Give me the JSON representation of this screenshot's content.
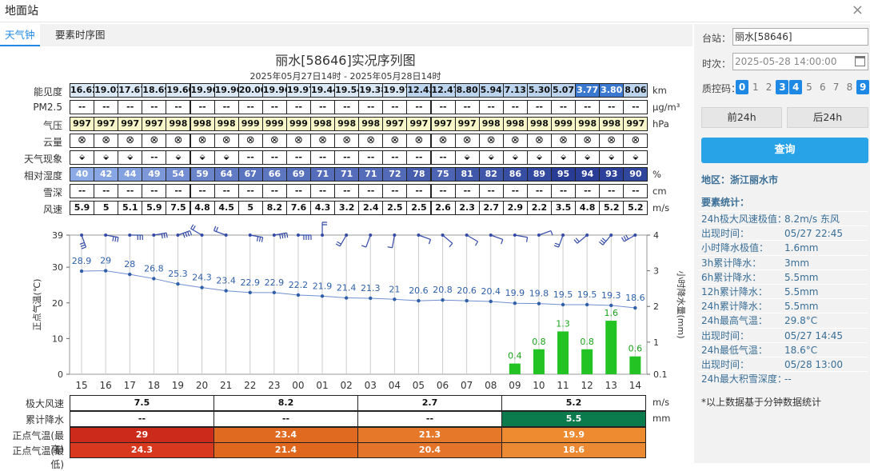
{
  "window": {
    "title": "地面站",
    "close": "×"
  },
  "tabs": [
    {
      "label": "天气钟",
      "active": true
    },
    {
      "label": "要素时序图",
      "active": false
    }
  ],
  "chart_title": "丽水[58646]实况序列图",
  "chart_subtitle": "2025年05月27日14时 - 2025年05月28日14时",
  "rows": [
    {
      "label": "能见度",
      "unit": "km",
      "values": [
        "16.62",
        "19.02",
        "17.67",
        "18.69",
        "19.60",
        "19.96",
        "19.90",
        "20.00",
        "19.96",
        "19.97",
        "19.44",
        "19.54",
        "19.38",
        "19.97",
        "12.43",
        "12.47",
        "8.80",
        "5.94",
        "7.13",
        "5.30",
        "5.07",
        "3.77",
        "3.80",
        "8.06"
      ]
    },
    {
      "label": "PM2.5",
      "unit": "μg/m³",
      "values": [
        "--",
        "--",
        "--",
        "--",
        "--",
        "--",
        "--",
        "--",
        "--",
        "--",
        "--",
        "--",
        "--",
        "--",
        "--",
        "--",
        "--",
        "--",
        "--",
        "--",
        "--",
        "--",
        "--",
        "--"
      ]
    },
    {
      "label": "气压",
      "unit": "hPa",
      "values": [
        "997",
        "997",
        "997",
        "997",
        "998",
        "998",
        "998",
        "999",
        "999",
        "999",
        "998",
        "998",
        "998",
        "997",
        "997",
        "997",
        "997",
        "998",
        "998",
        "998",
        "999",
        "998",
        "998",
        "997"
      ]
    },
    {
      "label": "云量",
      "unit": "",
      "values": [
        "⊗",
        "⊗",
        "⊗",
        "⊗",
        "⊗",
        "⊗",
        "⊗",
        "⊗",
        "⊗",
        "⊗",
        "⊗",
        "⊗",
        "⊗",
        "⊗",
        "⊗",
        "⊗",
        "⊗",
        "⊗",
        "⊗",
        "⊗",
        "⊗",
        "⊗",
        "⊗",
        "⊗"
      ]
    },
    {
      "label": "天气现象",
      "unit": "",
      "values": [
        "haze",
        "haze",
        "haze",
        "--",
        "haze",
        "haze",
        "haze",
        "--",
        "--",
        "--",
        "--",
        "--",
        "--",
        "--",
        "--",
        "--",
        "haze",
        "haze",
        "haze",
        "haze",
        "haze",
        "haze",
        "haze",
        "haze"
      ]
    },
    {
      "label": "相对湿度",
      "unit": "%",
      "values": [
        "40",
        "42",
        "44",
        "49",
        "54",
        "59",
        "64",
        "67",
        "66",
        "69",
        "71",
        "71",
        "71",
        "72",
        "78",
        "75",
        "81",
        "82",
        "86",
        "89",
        "95",
        "94",
        "93",
        "90"
      ]
    },
    {
      "label": "雪深",
      "unit": "cm",
      "values": [
        "--",
        "--",
        "--",
        "--",
        "--",
        "--",
        "--",
        "--",
        "--",
        "--",
        "--",
        "--",
        "--",
        "--",
        "--",
        "--",
        "--",
        "--",
        "--",
        "--",
        "--",
        "--",
        "--",
        "--"
      ]
    },
    {
      "label": "风速",
      "unit": "m/s",
      "values": [
        "5.9",
        "5",
        "5.1",
        "5.9",
        "7.5",
        "4.8",
        "4.5",
        "5",
        "8.2",
        "7.6",
        "4.3",
        "3.2",
        "2.4",
        "2.5",
        "2.5",
        "2.6",
        "2.3",
        "2.7",
        "2.9",
        "2.2",
        "3.5",
        "4.8",
        "5.2",
        "5.2"
      ]
    }
  ],
  "chart_data": {
    "type": "line",
    "categories": [
      "15",
      "16",
      "17",
      "18",
      "19",
      "20",
      "21",
      "22",
      "23",
      "00",
      "01",
      "02",
      "03",
      "04",
      "05",
      "06",
      "07",
      "08",
      "09",
      "10",
      "11",
      "12",
      "13",
      "14"
    ],
    "ylabel": "正点气温(℃)",
    "y2label": "小时降水量(mm)",
    "ylim": [
      0,
      39
    ],
    "yticks": [
      0,
      10,
      20,
      30,
      39
    ],
    "y2lim": [
      0.1,
      4
    ],
    "y2ticks": [
      "0.1",
      "1",
      "2",
      "3",
      "4"
    ],
    "series": [
      {
        "name": "正点气温",
        "type": "line",
        "values": [
          28.9,
          29,
          28,
          26.8,
          25.3,
          24.3,
          23.4,
          22.9,
          22.9,
          22.2,
          21.9,
          21.4,
          21.3,
          21,
          20.6,
          20.8,
          20.6,
          20.4,
          19.9,
          19.8,
          19.5,
          19.5,
          19.3,
          18.6
        ]
      },
      {
        "name": "小时降水量",
        "type": "bar",
        "values": [
          null,
          null,
          null,
          null,
          null,
          null,
          null,
          null,
          null,
          null,
          null,
          null,
          null,
          null,
          null,
          null,
          null,
          null,
          0.4,
          0.8,
          1.3,
          0.8,
          1.6,
          0.6
        ]
      }
    ],
    "line_color": "#2e5fa8",
    "bar_color": "#22c322",
    "wind_barbs": [
      {
        "ms": 5.9,
        "dir": 160
      },
      {
        "ms": 5,
        "dir": 100
      },
      {
        "ms": 5.1,
        "dir": 90
      },
      {
        "ms": 5.9,
        "dir": 80
      },
      {
        "ms": 7.5,
        "dir": 70
      },
      {
        "ms": 4.8,
        "dir": 300
      },
      {
        "ms": 4.5,
        "dir": 290
      },
      {
        "ms": 5,
        "dir": 100
      },
      {
        "ms": 8.2,
        "dir": 80
      },
      {
        "ms": 7.6,
        "dir": 90
      },
      {
        "ms": 4.3,
        "dir": 0
      },
      {
        "ms": 3.2,
        "dir": 210
      },
      {
        "ms": 2.4,
        "dir": 200
      },
      {
        "ms": 2.5,
        "dir": 190
      },
      {
        "ms": 2.5,
        "dir": 110
      },
      {
        "ms": 2.6,
        "dir": 130
      },
      {
        "ms": 2.3,
        "dir": 120
      },
      {
        "ms": 2.7,
        "dir": 110
      },
      {
        "ms": 2.9,
        "dir": 100
      },
      {
        "ms": 2.2,
        "dir": 70
      },
      {
        "ms": 3.5,
        "dir": 200
      },
      {
        "ms": 4.8,
        "dir": 230
      },
      {
        "ms": 5.2,
        "dir": 220
      },
      {
        "ms": 5.2,
        "dir": 240
      }
    ]
  },
  "bottom": {
    "labels": [
      "极大风速",
      "累计降水",
      "正点气温(最高)",
      "正点气温(最低)"
    ],
    "units": [
      "m/s",
      "mm"
    ],
    "max_wind": [
      "7.5",
      "8.2",
      "2.7",
      "5.2"
    ],
    "rain": [
      "--",
      "--",
      "--",
      "5.5"
    ],
    "tmax": [
      "29",
      "23.4",
      "21.3",
      "19.9"
    ],
    "tmin": [
      "24.3",
      "21.4",
      "20.4",
      "18.6"
    ]
  },
  "panel": {
    "station_label": "台站：",
    "station_value": "丽水[58646]",
    "time_label": "时次：",
    "time_value": "2025-05-28 14:00:00",
    "qc_label": "质控码：",
    "qc": [
      {
        "v": "0",
        "on": true
      },
      {
        "v": "1",
        "on": false
      },
      {
        "v": "2",
        "on": false
      },
      {
        "v": "3",
        "on": true
      },
      {
        "v": "4",
        "on": true
      },
      {
        "v": "5",
        "on": false
      },
      {
        "v": "6",
        "on": false
      },
      {
        "v": "7",
        "on": false
      },
      {
        "v": "8",
        "on": false
      },
      {
        "v": "9",
        "on": true
      }
    ],
    "prev_btn": "前24h",
    "next_btn": "后24h",
    "query_btn": "查询",
    "region": "地区：浙江丽水市",
    "stats_title": "要素统计：",
    "stats": [
      {
        "k": "24h极大风速极值：",
        "v": "8.2m/s 东风"
      },
      {
        "k": "出现时间：",
        "v": "05/27 22:45"
      },
      {
        "k": "小时降水极值：",
        "v": "1.6mm"
      },
      {
        "k": "3h累计降水：",
        "v": "3mm"
      },
      {
        "k": "6h累计降水：",
        "v": "5.5mm"
      },
      {
        "k": "12h累计降水：",
        "v": "5.5mm"
      },
      {
        "k": "24h累计降水：",
        "v": "5.5mm"
      },
      {
        "k": "24h最高气温：",
        "v": "29.8°C"
      },
      {
        "k": "出现时间：",
        "v": "05/27 14:45"
      },
      {
        "k": "24h最低气温：",
        "v": "18.6°C"
      },
      {
        "k": "出现时间：",
        "v": "05/28 13:00"
      },
      {
        "k": "24h最大积雪深度：",
        "v": "--"
      }
    ],
    "footnote": "*以上数据基于分钟数据统计"
  }
}
